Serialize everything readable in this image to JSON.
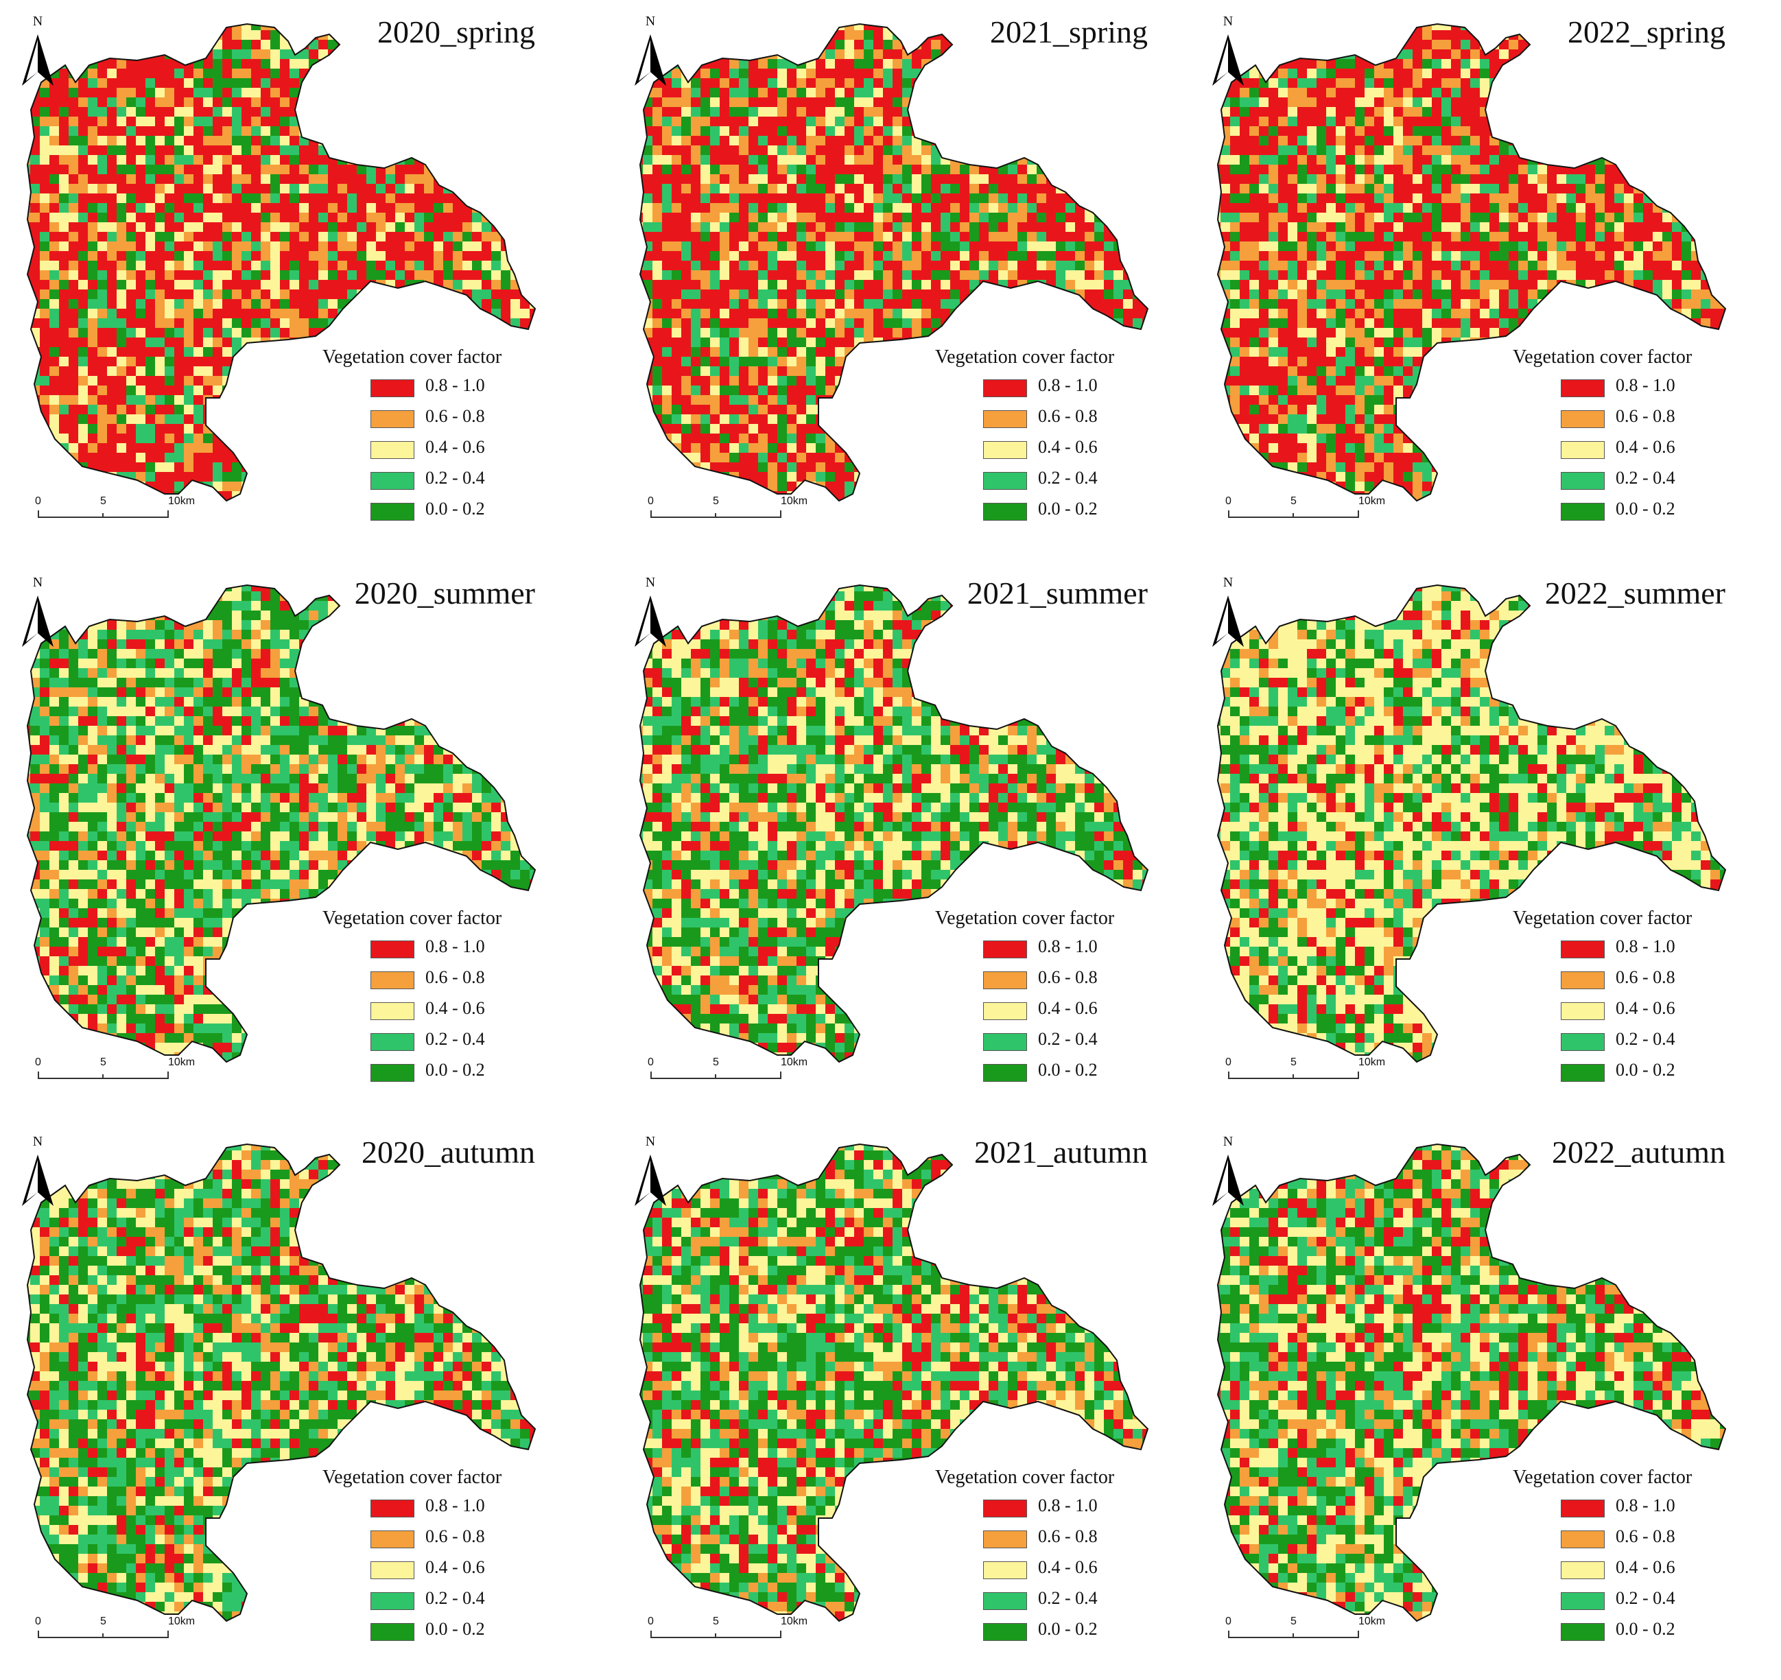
{
  "legend": {
    "title": "Vegetation cover factor",
    "classes": [
      {
        "label": "0.8 - 1.0",
        "color": "#e8161b"
      },
      {
        "label": "0.6 - 0.8",
        "color": "#f5a03c"
      },
      {
        "label": "0.4 - 0.6",
        "color": "#fdf59a"
      },
      {
        "label": "0.2 - 0.4",
        "color": "#30c46a"
      },
      {
        "label": "0.0 - 0.2",
        "color": "#1a9a1c"
      }
    ]
  },
  "north_label": "N",
  "scale_bar": {
    "ticks": [
      "0",
      "5",
      "10km"
    ]
  },
  "panels": [
    {
      "title": "2020_spring",
      "dominant": "red"
    },
    {
      "title": "2021_spring",
      "dominant": "red"
    },
    {
      "title": "2022_spring",
      "dominant": "red"
    },
    {
      "title": "2020_summer",
      "dominant": "green"
    },
    {
      "title": "2021_summer",
      "dominant": "green"
    },
    {
      "title": "2022_summer",
      "dominant": "yellow"
    },
    {
      "title": "2020_autumn",
      "dominant": "green"
    },
    {
      "title": "2021_autumn",
      "dominant": "green"
    },
    {
      "title": "2022_autumn",
      "dominant": "green"
    }
  ]
}
